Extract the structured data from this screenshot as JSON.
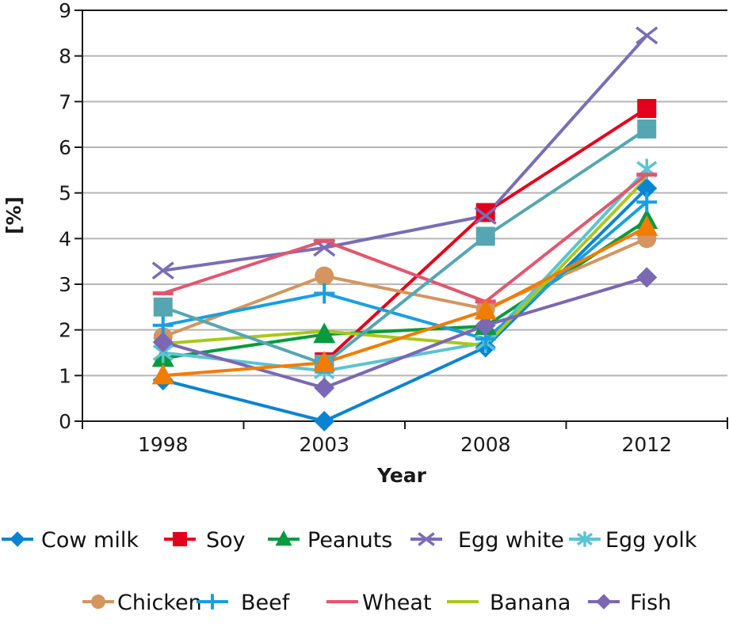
{
  "chart_data": {
    "type": "line",
    "title": "",
    "xlabel": "Year",
    "ylabel": "[%]",
    "categories": [
      "1998",
      "2003",
      "2008",
      "2012"
    ],
    "ylim": [
      0,
      9
    ],
    "yticks": [
      "0",
      "1",
      "2",
      "3",
      "4",
      "5",
      "6",
      "7",
      "8",
      "9"
    ],
    "grid": "horizontal",
    "legend_position": "bottom",
    "series": [
      {
        "name": "Cow milk",
        "marker": "diamond",
        "color": "#0a84d0",
        "values": [
          0.9,
          0.0,
          1.62,
          5.1
        ],
        "in_legend": true
      },
      {
        "name": "Soy",
        "marker": "square",
        "color": "#e3001b",
        "values": [
          null,
          1.3,
          4.57,
          6.85
        ],
        "in_legend": true
      },
      {
        "name": "Peanuts",
        "marker": "triangle",
        "color": "#079a3f",
        "values": [
          1.38,
          1.9,
          2.08,
          4.4
        ],
        "in_legend": true
      },
      {
        "name": "Egg white",
        "marker": "x",
        "color": "#7a6db5",
        "values": [
          3.3,
          3.8,
          4.5,
          8.45
        ],
        "in_legend": true
      },
      {
        "name": "Egg yolk",
        "marker": "asterisk",
        "color": "#5cc3d3",
        "values": [
          1.5,
          1.1,
          1.72,
          5.52
        ],
        "in_legend": true
      },
      {
        "name": "Chicken",
        "marker": "circle",
        "color": "#d4955f",
        "values": [
          1.85,
          3.18,
          2.46,
          4.0
        ],
        "in_legend": true
      },
      {
        "name": "Beef",
        "marker": "plus",
        "color": "#1a9fe0",
        "values": [
          2.1,
          2.8,
          1.8,
          4.8
        ],
        "in_legend": true
      },
      {
        "name": "Wheat",
        "marker": "dash",
        "color": "#e2566f",
        "values": [
          2.8,
          3.95,
          2.62,
          5.4
        ],
        "in_legend": true
      },
      {
        "name": "Banana",
        "marker": "none",
        "color": "#a8c81a",
        "values": [
          1.7,
          1.97,
          1.66,
          5.33
        ],
        "in_legend": true
      },
      {
        "name": "Fish",
        "marker": "diamond",
        "color": "#7b68b3",
        "values": [
          1.73,
          0.73,
          2.1,
          3.15
        ],
        "in_legend": true
      },
      {
        "name": "Unlabeled series (teal square)",
        "marker": "square",
        "color": "#55a6b2",
        "values": [
          2.5,
          1.25,
          4.05,
          6.4
        ],
        "in_legend": false
      },
      {
        "name": "Unlabeled series (orange triangle)",
        "marker": "triangle",
        "color": "#f07d00",
        "values": [
          1.0,
          1.28,
          2.42,
          4.25
        ],
        "in_legend": false
      }
    ]
  }
}
